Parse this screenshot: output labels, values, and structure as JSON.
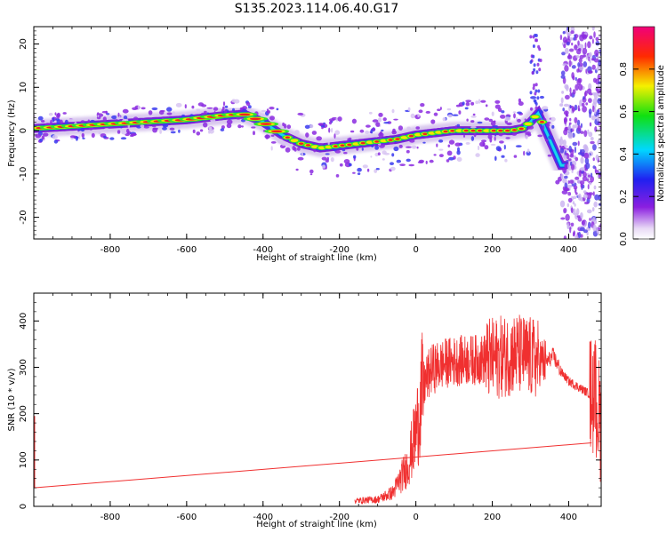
{
  "figure": {
    "title": "S135.2023.114.06.40.G17"
  },
  "chart_data": [
    {
      "type": "heatmap",
      "xlabel": "Height of straight line (km)",
      "ylabel": "Frequency (Hz)",
      "xlim": [
        -1000,
        485
      ],
      "ylim": [
        -25,
        24
      ],
      "xticks": [
        -800,
        -600,
        -400,
        -200,
        0,
        200,
        400
      ],
      "yticks": [
        -20,
        -10,
        0,
        10,
        20
      ],
      "colorbar": {
        "label": "Normalized spectral amplitude",
        "range": [
          0,
          1
        ],
        "ticks": [
          0.0,
          0.2,
          0.4,
          0.6,
          0.8
        ],
        "colormap": "rainbow (purple-blue-cyan-green-yellow-red-pink)"
      },
      "ridge_frequency_hz": {
        "x": [
          -1000,
          -900,
          -800,
          -700,
          -600,
          -500,
          -450,
          -400,
          -350,
          -300,
          -250,
          -200,
          -150,
          -100,
          -50,
          0,
          50,
          100,
          150,
          200,
          250,
          280,
          300,
          320,
          340,
          360,
          380
        ],
        "y": [
          0.5,
          1,
          1.5,
          2,
          2.5,
          3.5,
          3.8,
          2,
          -1,
          -3,
          -4,
          -3.5,
          -3,
          -2.5,
          -2,
          -1,
          -0.5,
          0,
          0,
          0,
          0,
          0.5,
          2,
          4,
          0,
          -4,
          -8
        ]
      }
    },
    {
      "type": "line",
      "xlabel": "Height of straight line (km)",
      "ylabel": "SNR (10 * v/v)",
      "xlim": [
        -1000,
        485
      ],
      "ylim": [
        0,
        460
      ],
      "xticks": [
        -800,
        -600,
        -400,
        -200,
        0,
        200,
        400
      ],
      "yticks": [
        0,
        100,
        200,
        300,
        400
      ],
      "color": "#f03030",
      "reference_line": {
        "x": [
          -1000,
          460
        ],
        "y": [
          40,
          137
        ]
      },
      "snr_envelope": {
        "x": [
          -160,
          -100,
          -60,
          -20,
          0,
          20,
          40,
          80,
          120,
          200,
          260,
          300,
          340,
          360,
          380,
          400,
          440,
          470,
          485
        ],
        "y": [
          12,
          15,
          30,
          90,
          160,
          260,
          295,
          310,
          315,
          318,
          330,
          320,
          310,
          325,
          290,
          270,
          250,
          235,
          170
        ]
      }
    }
  ]
}
